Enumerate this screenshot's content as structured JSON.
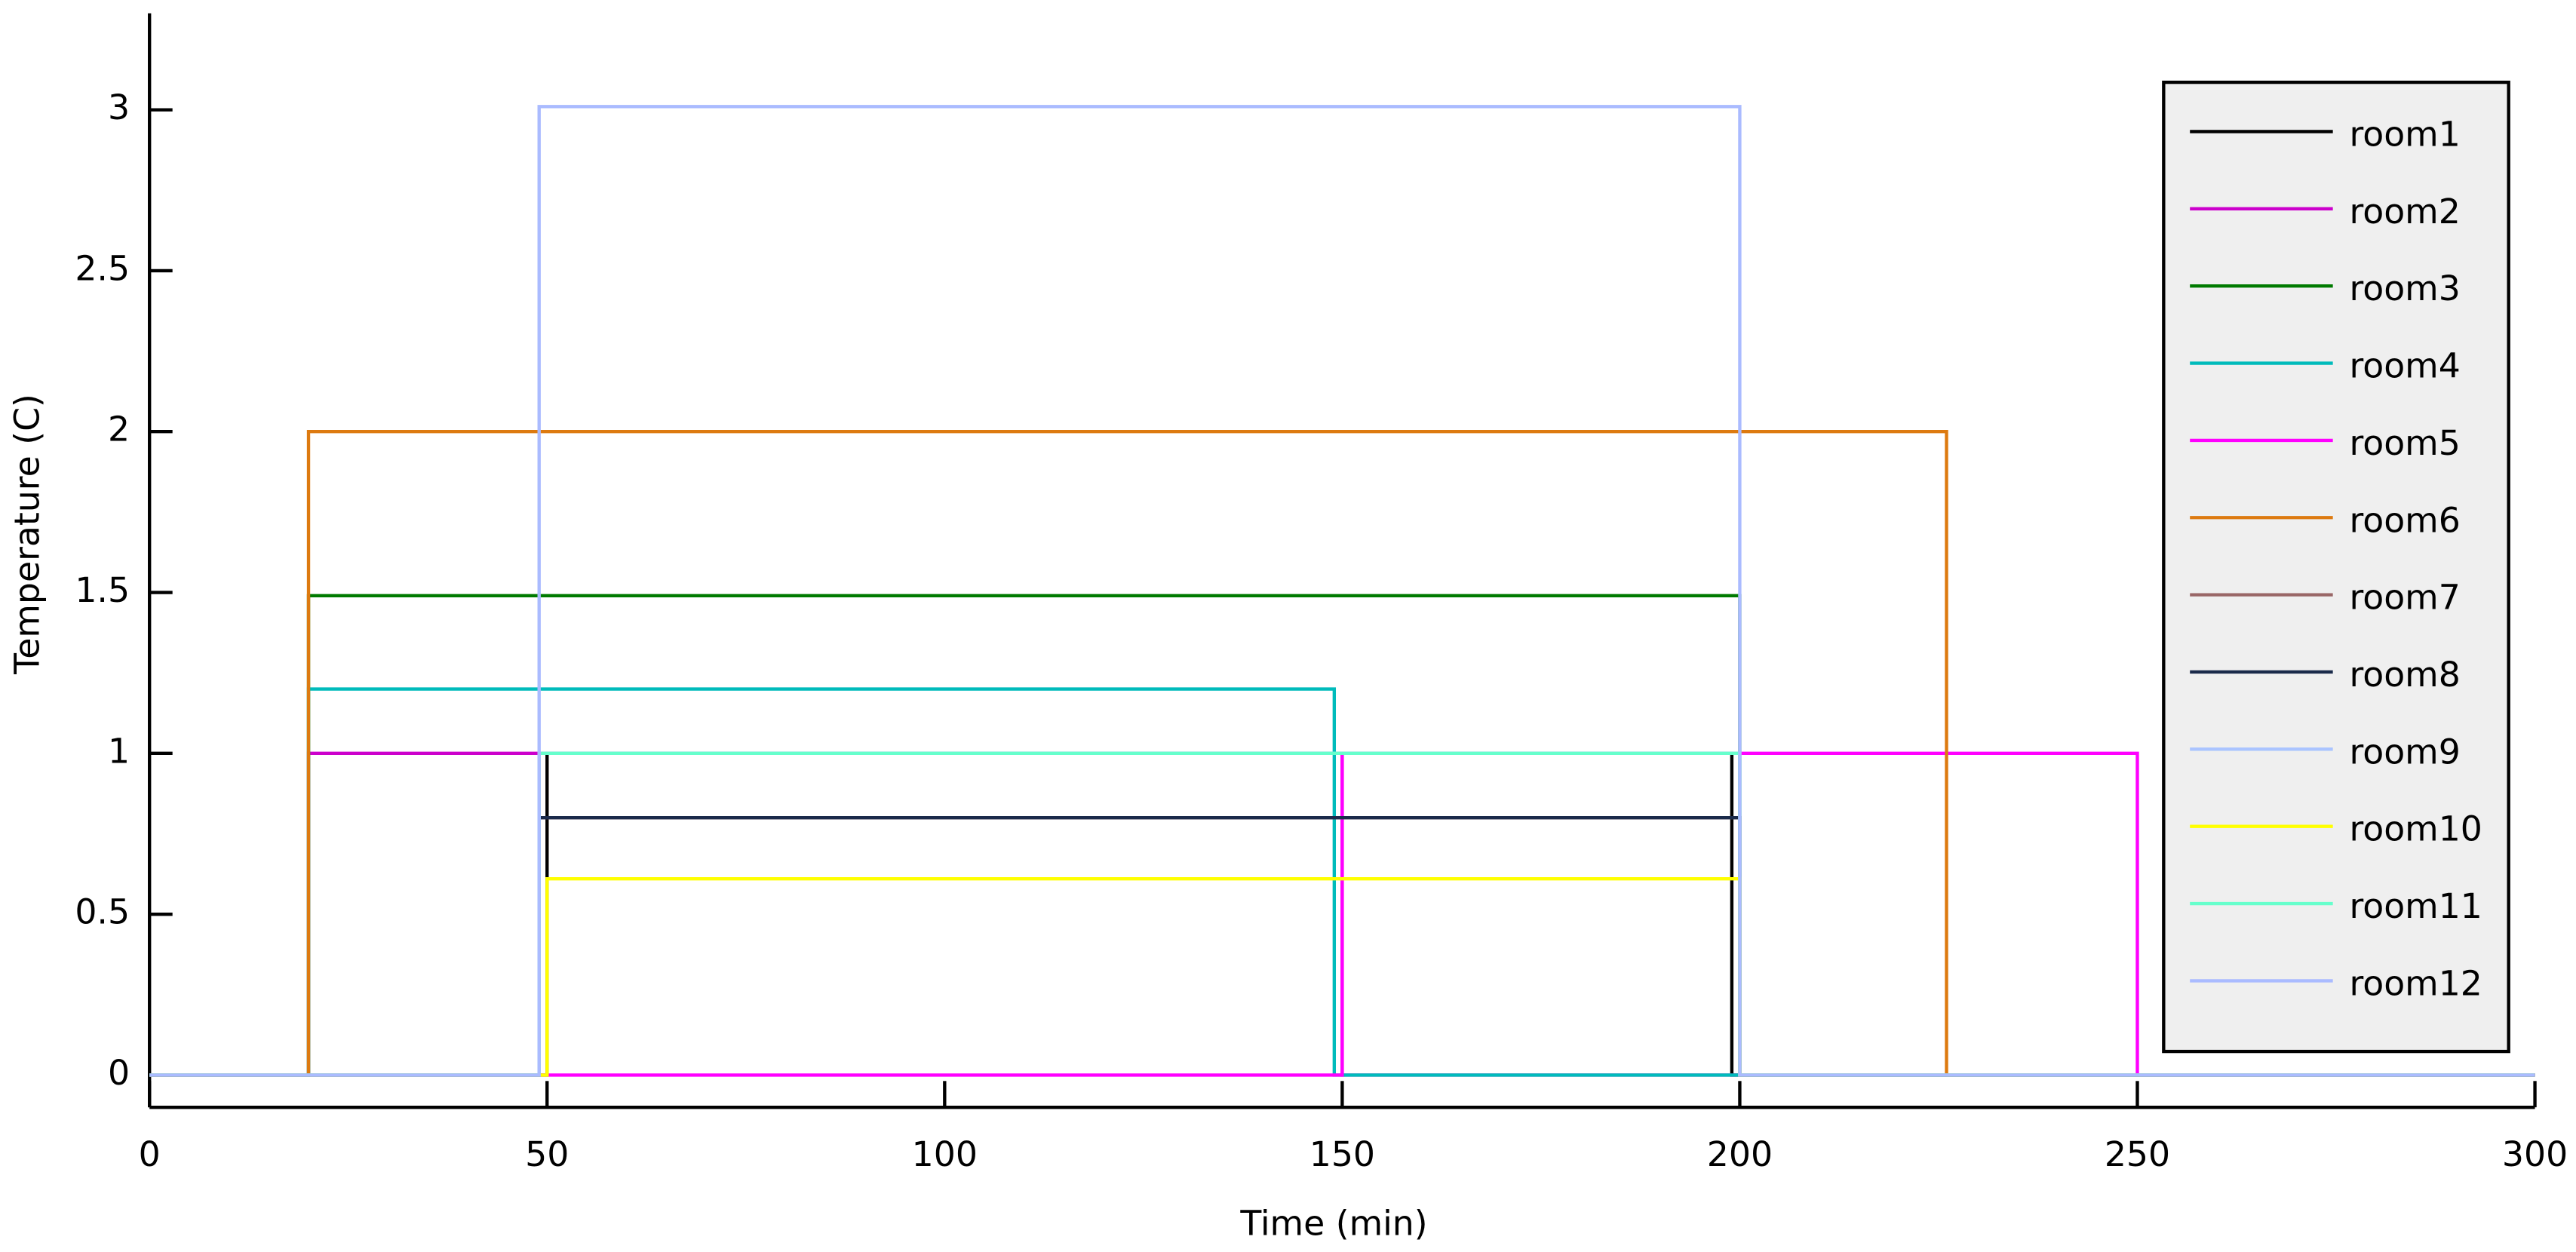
{
  "chart_data": {
    "type": "line",
    "xlabel": "Time (min)",
    "ylabel": "Temperature (C)",
    "xlim": [
      0,
      300
    ],
    "ylim": [
      -0.1,
      3.3
    ],
    "xticks": [
      0,
      50,
      100,
      150,
      200,
      250,
      300
    ],
    "yticks": [
      0,
      0.5,
      1,
      1.5,
      2,
      2.5,
      3
    ],
    "grid": false,
    "legend": "upper right",
    "series": [
      {
        "name": "room1",
        "color": "#000000",
        "x": [
          0,
          50,
          50,
          199,
          199,
          300
        ],
        "values": [
          0,
          0,
          1,
          1,
          0,
          0
        ]
      },
      {
        "name": "room2",
        "color": "#cc00cc",
        "x": [
          0,
          20,
          20,
          150,
          150,
          300
        ],
        "values": [
          0,
          0,
          1,
          1,
          0,
          0
        ]
      },
      {
        "name": "room3",
        "color": "#007a00",
        "x": [
          0,
          20,
          20,
          200,
          200,
          300
        ],
        "values": [
          0,
          0,
          1.49,
          1.49,
          0,
          0
        ]
      },
      {
        "name": "room4",
        "color": "#00bbbb",
        "x": [
          0,
          20,
          20,
          149,
          149,
          300
        ],
        "values": [
          0,
          0,
          1.2,
          1.2,
          0,
          0
        ]
      },
      {
        "name": "room5",
        "color": "#ff00ff",
        "x": [
          0,
          150,
          150,
          250,
          250,
          300
        ],
        "values": [
          0,
          0,
          1,
          1,
          0,
          0
        ]
      },
      {
        "name": "room6",
        "color": "#dd7a10",
        "x": [
          0,
          20,
          20,
          226,
          226,
          300
        ],
        "values": [
          0,
          0,
          2,
          2,
          0,
          0
        ]
      },
      {
        "name": "room7",
        "color": "#996666",
        "x": [
          0,
          49,
          49,
          200,
          200,
          300
        ],
        "values": [
          0,
          0,
          0.8,
          0.8,
          0,
          0
        ]
      },
      {
        "name": "room8",
        "color": "#1a2a4a",
        "x": [
          0,
          49,
          49,
          200,
          200,
          300
        ],
        "values": [
          0,
          0,
          0.8,
          0.8,
          0,
          0
        ]
      },
      {
        "name": "room9",
        "color": "#aac4ff",
        "x": [
          0,
          49,
          49,
          200,
          200,
          300
        ],
        "values": [
          0,
          0,
          1,
          1,
          0,
          0
        ]
      },
      {
        "name": "room10",
        "color": "#ffff00",
        "x": [
          0,
          50,
          50,
          200,
          200,
          300
        ],
        "values": [
          0,
          0,
          0.61,
          0.61,
          0,
          0
        ]
      },
      {
        "name": "room11",
        "color": "#66ffcc",
        "x": [
          0,
          49,
          49,
          200,
          200,
          300
        ],
        "values": [
          0,
          0,
          1,
          1,
          0,
          0
        ]
      },
      {
        "name": "room12",
        "color": "#aabbff",
        "x": [
          0,
          49,
          49,
          200,
          200,
          300
        ],
        "values": [
          0,
          0,
          3.01,
          3.01,
          0,
          0
        ]
      }
    ]
  }
}
